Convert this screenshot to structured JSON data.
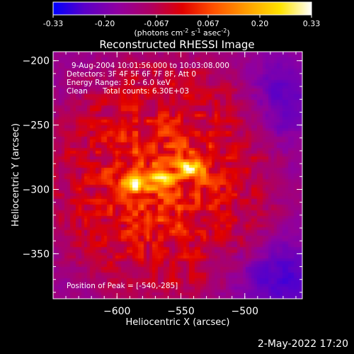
{
  "colorbar": {
    "ticks": [
      "-0.33",
      "-0.20",
      "-0.067",
      "0.067",
      "0.20",
      "0.33"
    ],
    "units_main": "(photons cm",
    "units_exp1": "-2",
    "units_mid1": " s",
    "units_exp2": "-1",
    "units_mid2": " asec",
    "units_exp3": "-2",
    "units_end": ")",
    "range": [
      -0.33,
      0.33
    ],
    "colors": [
      "#0000ff",
      "#5a00c8",
      "#9000a0",
      "#b00060",
      "#e00000",
      "#ff5000",
      "#ff9e00",
      "#ffe400",
      "#ffffff"
    ]
  },
  "annotations": {
    "time_range": "9-Aug-2004 10:01:56.000 to 10:03:08.000",
    "detectors": "Detectors: 3F 4F 5F 6F 7F 8F, Att 0",
    "energy_range": "Energy Range: 3.0 - 6.0 keV",
    "algorithm": "Clean",
    "total_counts": "Total counts: 6.30E+03",
    "peak_position": "Position of Peak = [-540,-285]"
  },
  "footer": {
    "date": "2-May-2022 17:20"
  },
  "chart_data": {
    "type": "heatmap",
    "title": "Reconstructed RHESSI Image",
    "xlabel": "Heliocentric X (arcsec)",
    "ylabel": "Heliocentric Y (arcsec)",
    "xlim": [
      -650,
      -545
    ],
    "ylim": [
      -385,
      -193
    ],
    "xlim_full": [
      -650,
      -455
    ],
    "x_ticks": [
      -600,
      -550,
      -500
    ],
    "y_ticks": [
      -200,
      -250,
      -300,
      -350
    ],
    "x_tick_labels": [
      "−600",
      "−550",
      "−500"
    ],
    "y_tick_labels": [
      "−200",
      "−250",
      "−300",
      "−350"
    ],
    "peak": [
      -540,
      -285
    ],
    "sources": [
      {
        "x": -585,
        "y": -295,
        "amplitude": 0.33
      },
      {
        "x": -542,
        "y": -284,
        "amplitude": 0.3
      },
      {
        "x": -565,
        "y": -292,
        "amplitude": 0.24
      }
    ]
  }
}
